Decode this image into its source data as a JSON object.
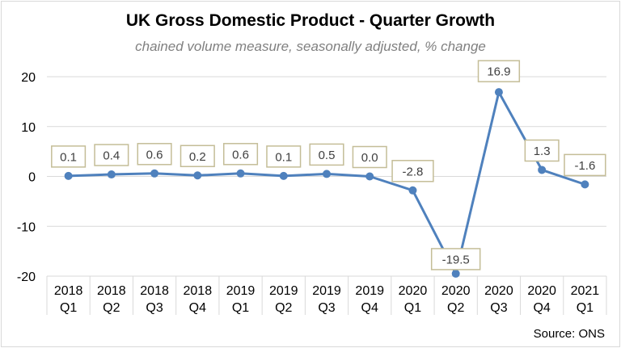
{
  "chart_data": {
    "type": "line",
    "title": "UK Gross Domestic Product - Quarter Growth",
    "subtitle": "chained volume measure, seasonally adjusted, % change",
    "source": "Source: ONS",
    "categories": [
      [
        "2018",
        "Q1"
      ],
      [
        "2018",
        "Q2"
      ],
      [
        "2018",
        "Q3"
      ],
      [
        "2018",
        "Q4"
      ],
      [
        "2019",
        "Q1"
      ],
      [
        "2019",
        "Q2"
      ],
      [
        "2019",
        "Q3"
      ],
      [
        "2019",
        "Q4"
      ],
      [
        "2020",
        "Q1"
      ],
      [
        "2020",
        "Q2"
      ],
      [
        "2020",
        "Q3"
      ],
      [
        "2020",
        "Q4"
      ],
      [
        "2021",
        "Q1"
      ]
    ],
    "values": [
      0.1,
      0.4,
      0.6,
      0.2,
      0.6,
      0.1,
      0.5,
      0.0,
      -2.8,
      -19.5,
      16.9,
      1.3,
      -1.6
    ],
    "data_labels": [
      "0.1",
      "0.4",
      "0.6",
      "0.2",
      "0.6",
      "0.1",
      "0.5",
      "0.0",
      "-2.8",
      "-19.5",
      "16.9",
      "1.3",
      "-1.6"
    ],
    "label_positions": [
      "above",
      "above",
      "above",
      "above",
      "above",
      "above",
      "above",
      "above",
      "above",
      "above",
      "above",
      "above",
      "above"
    ],
    "ylim": [
      -20,
      20
    ],
    "yticks": [
      -20,
      -10,
      0,
      10,
      20
    ],
    "ytick_labels": [
      "-20",
      "-10",
      "0",
      "10",
      "20"
    ],
    "grid": "horizontal",
    "legend": "none",
    "colors": {
      "line": "#4f81bd",
      "grid": "#d9d9d9",
      "label_border": "#c4bd97",
      "axis_text": "#000000"
    }
  }
}
